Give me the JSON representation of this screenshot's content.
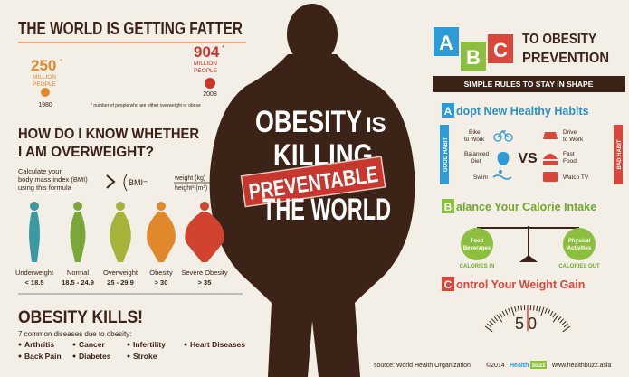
{
  "header": {
    "title": "THE WORLD IS GETTING FATTER"
  },
  "timeline": {
    "start": {
      "value": "250",
      "mark": "*",
      "unit": [
        "MILLION",
        "PEOPLE"
      ],
      "year": "1980"
    },
    "end": {
      "value": "904",
      "mark": "*",
      "unit": [
        "MILLION",
        "PEOPLE"
      ],
      "year": "2008"
    },
    "footnote": "* number of people who are either overweight or obese"
  },
  "bmi": {
    "title": [
      "HOW DO I KNOW WHETHER",
      "I AM OVERWEIGHT?"
    ],
    "intro": [
      "Calculate your",
      "body mass index (BMI)",
      "using this formula"
    ],
    "formula": {
      "lhs": "BMI=",
      "numerator": "weight (kg)",
      "denominator": "height² (m²)"
    },
    "categories": [
      {
        "name": "Underweight",
        "range": "< 18.5"
      },
      {
        "name": "Normal",
        "range": "18.5 - 24.9"
      },
      {
        "name": "Overweight",
        "range": "25 - 29.9"
      },
      {
        "name": "Obesity",
        "range": "> 30"
      },
      {
        "name": "Severe Obesity",
        "range": "> 35"
      }
    ]
  },
  "kills": {
    "title": "OBESITY KILLS!",
    "subtitle": "7 common diseases due to obesity:",
    "diseases": [
      "Arthritis",
      "Cancer",
      "Infertility",
      "Heart Diseases",
      "Back Pain",
      "Diabetes",
      "Stroke"
    ]
  },
  "center": {
    "line1": "OBESITY",
    "is": "IS",
    "line2": "KILLING",
    "stamp": "PREVENTABLE",
    "line3": "THE WORLD"
  },
  "abc": {
    "letters": [
      "A",
      "B",
      "C"
    ],
    "title": [
      "TO OBESITY",
      "PREVENTION"
    ],
    "banner": "SIMPLE RULES TO STAY IN SHAPE",
    "sections": [
      {
        "letter": "A",
        "title": "dopt New Healthy Habits",
        "good": "GOOD HABIT",
        "bad": "BAD HABIT",
        "vs": "VS",
        "good_items": [
          [
            "Bike",
            "to Work"
          ],
          [
            "Balanced",
            "Diet"
          ],
          [
            "Swim"
          ]
        ],
        "bad_items": [
          [
            "Drive",
            "to Work"
          ],
          [
            "Fast",
            "Food"
          ],
          [
            "Watch TV"
          ]
        ]
      },
      {
        "letter": "B",
        "title": "alance Your Calorie Intake",
        "left": [
          "Food",
          "Beverages"
        ],
        "left_label": "CALORIES IN",
        "right": [
          "Physical",
          "Activities"
        ],
        "right_label": "CALORIES OUT"
      },
      {
        "letter": "C",
        "title": "ontrol Your Weight Gain",
        "gauge": "50"
      }
    ]
  },
  "footer": {
    "source": "source: World Health Organization",
    "copyright": "©2014",
    "brand": "Health",
    "brand2": "buzz",
    "site": "www.healthbuzz.asia"
  }
}
